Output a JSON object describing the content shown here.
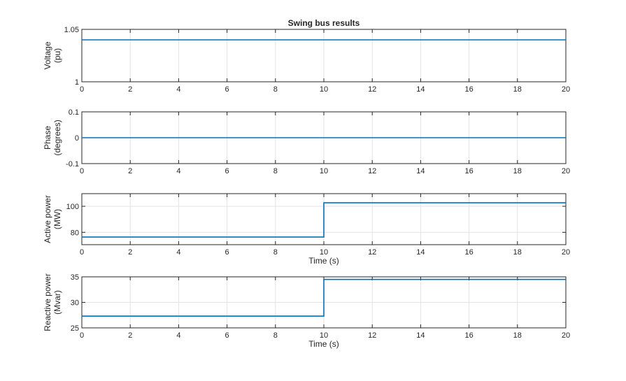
{
  "figure_title": "Swing bus results",
  "line_color": "#0072BD",
  "chart_data": [
    {
      "type": "line",
      "title": "Swing bus results",
      "xlabel": "",
      "ylabel": [
        "Voltage",
        "(pu)"
      ],
      "xlim": [
        0,
        20
      ],
      "ylim": [
        1,
        1.05
      ],
      "xticks": [
        0,
        2,
        4,
        6,
        8,
        10,
        12,
        14,
        16,
        18,
        20
      ],
      "yticks": [
        1,
        1.05
      ],
      "ytick_labels": [
        "1",
        "1.05"
      ],
      "grid": true,
      "x": [
        0,
        10,
        10,
        20
      ],
      "y": [
        1.04,
        1.04,
        1.04,
        1.04
      ]
    },
    {
      "type": "line",
      "title": "",
      "xlabel": "",
      "ylabel": [
        "Phase",
        "(degrees)"
      ],
      "xlim": [
        0,
        20
      ],
      "ylim": [
        -0.1,
        0.1
      ],
      "xticks": [
        0,
        2,
        4,
        6,
        8,
        10,
        12,
        14,
        16,
        18,
        20
      ],
      "yticks": [
        -0.1,
        0,
        0.1
      ],
      "ytick_labels": [
        "-0.1",
        "0",
        "0.1"
      ],
      "grid": true,
      "x": [
        0,
        10,
        10,
        20
      ],
      "y": [
        0,
        0,
        0,
        0
      ]
    },
    {
      "type": "line",
      "title": "",
      "xlabel": "Time (s)",
      "ylabel": [
        "Active power",
        "(MW)"
      ],
      "xlim": [
        0,
        20
      ],
      "ylim": [
        70.5,
        109.7
      ],
      "xticks": [
        0,
        2,
        4,
        6,
        8,
        10,
        12,
        14,
        16,
        18,
        20
      ],
      "yticks": [
        80,
        100
      ],
      "ytick_labels": [
        "80",
        "100"
      ],
      "grid": true,
      "x": [
        0,
        10,
        10,
        20
      ],
      "y": [
        76.4,
        76.4,
        102.7,
        102.7
      ]
    },
    {
      "type": "line",
      "title": "",
      "xlabel": "Time (s)",
      "ylabel": [
        "Reactive power",
        "(Mvar)"
      ],
      "xlim": [
        0,
        20
      ],
      "ylim": [
        25,
        35
      ],
      "xticks": [
        0,
        2,
        4,
        6,
        8,
        10,
        12,
        14,
        16,
        18,
        20
      ],
      "yticks": [
        25,
        30,
        35
      ],
      "ytick_labels": [
        "25",
        "30",
        "35"
      ],
      "grid": true,
      "x": [
        0,
        10,
        10,
        20
      ],
      "y": [
        27.3,
        27.3,
        34.5,
        34.5
      ]
    }
  ]
}
